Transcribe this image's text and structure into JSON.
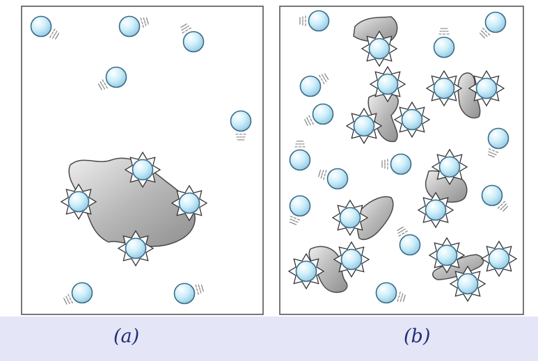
{
  "panels": [
    {
      "label": "(a)"
    },
    {
      "label": "(b)"
    }
  ],
  "colors": {
    "background": "#e4e5f6",
    "caption": "#1f2e7a",
    "panel_border": "#555555",
    "particle_fill": "#cdeefa",
    "particle_stroke": "#3a6c8a",
    "blob_fill": "#b4b4b4",
    "blob_stroke": "#4a4a4a",
    "motion_marks": "#777777"
  }
}
